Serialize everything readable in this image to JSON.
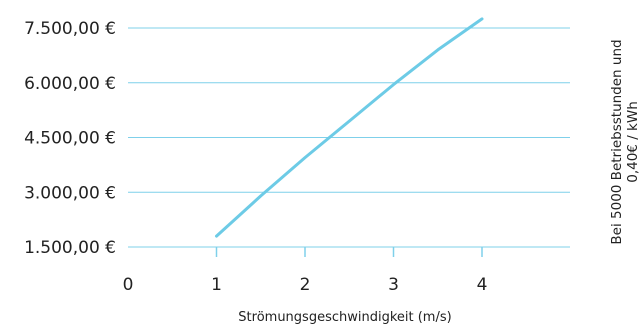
{
  "chart_data": {
    "type": "line",
    "title": "",
    "xlabel": "Strömungsgeschwindigkeit (m/s)",
    "ylabel": "",
    "side_note": [
      "Bei 5000 Betriebsstunden und",
      "0,40€ / kWh"
    ],
    "x_ticks": [
      "0",
      "1",
      "2",
      "3",
      "4"
    ],
    "y_ticks": [
      "1.500,00 €",
      "3.000,00 €",
      "4.500,00 €",
      "6.000,00 €",
      "7.500,00 €"
    ],
    "y_tick_values": [
      1500,
      3000,
      4500,
      6000,
      7500
    ],
    "x_tick_values": [
      0,
      1,
      2,
      3,
      4
    ],
    "xlim": [
      0,
      5
    ],
    "ylim": [
      1500,
      7500
    ],
    "grid": "horizontal",
    "series": [
      {
        "color": "#6dcbe6",
        "x": [
          1,
          1.5,
          2,
          2.5,
          3,
          3.5,
          4
        ],
        "y": [
          1800,
          2900,
          3950,
          4950,
          5950,
          6900,
          7750
        ]
      }
    ],
    "colors": {
      "line": "#6dcbe6",
      "grid": "#7fd0ea",
      "axis": "#7fd0ea",
      "text": "#222222"
    }
  }
}
